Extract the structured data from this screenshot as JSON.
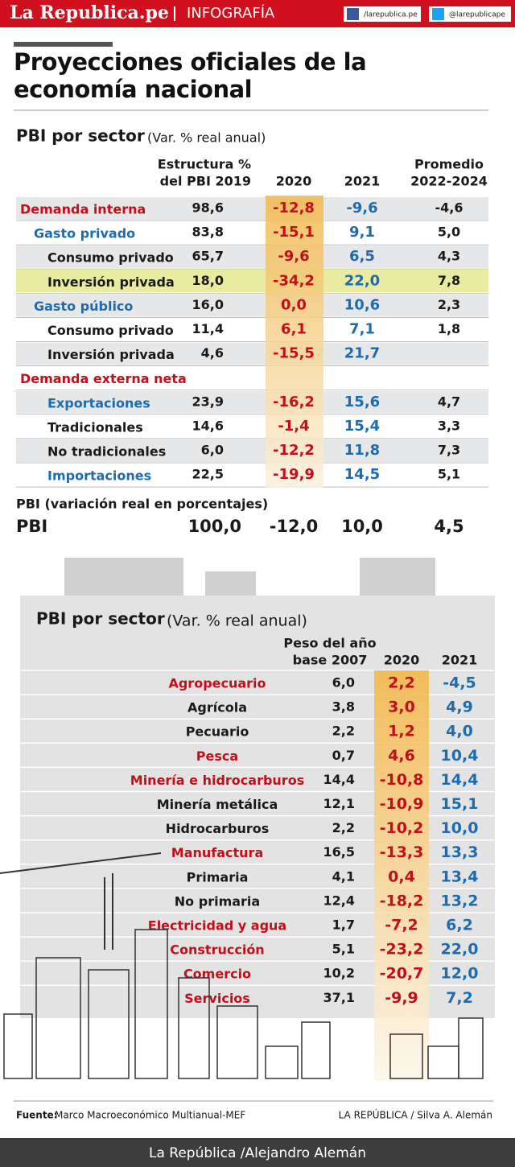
{
  "header": {
    "brand": "La Republica.pe",
    "section": "INFOGRAFÍA",
    "facebook": "/larepublica.pe",
    "twitter": "@larepublicape"
  },
  "title": "Proyecciones oficiales de la economía nacional",
  "table1": {
    "title": "PBI por sector",
    "subtitle": "(Var. % real anual)",
    "columns": [
      [
        "Estructura %",
        "del PBI 2019"
      ],
      [
        "2020"
      ],
      [
        "2021"
      ],
      [
        "Promedio",
        "2022-2024"
      ]
    ],
    "rows": [
      {
        "label": "Demanda interna",
        "color": "red",
        "indent": 0,
        "cells": [
          "98,6",
          "-12,8",
          "-9,6",
          "-4,6"
        ]
      },
      {
        "label": "Gasto privado",
        "color": "blue",
        "indent": 1,
        "cells": [
          "83,8",
          "-15,1",
          "9,1",
          "5,0"
        ]
      },
      {
        "label": "Consumo privado",
        "color": "black",
        "indent": 2,
        "cells": [
          "65,7",
          "-9,6",
          "6,5",
          "4,3"
        ]
      },
      {
        "label": "Inversión privada",
        "color": "black",
        "indent": 2,
        "highlight": true,
        "cells": [
          "18,0",
          "-34,2",
          "22,0",
          "7,8"
        ]
      },
      {
        "label": "Gasto público",
        "color": "blue",
        "indent": 1,
        "cells": [
          "16,0",
          "0,0",
          "10,6",
          "2,3"
        ]
      },
      {
        "label": "Consumo privado",
        "color": "black",
        "indent": 2,
        "cells": [
          "11,4",
          "6,1",
          "7,1",
          "1,8"
        ]
      },
      {
        "label": "Inversión privada",
        "color": "black",
        "indent": 2,
        "cells": [
          "4,6",
          "-15,5",
          "21,7",
          null
        ]
      },
      {
        "label": "Demanda externa neta",
        "color": "red",
        "indent": 0,
        "cells": [
          null,
          null,
          null,
          null
        ]
      },
      {
        "label": "Exportaciones",
        "color": "blue",
        "indent": 2,
        "cells": [
          "23,9",
          "-16,2",
          "15,6",
          "4,7"
        ]
      },
      {
        "label": "Tradicionales",
        "color": "black",
        "indent": 2,
        "cells": [
          "14,6",
          "-1,4",
          "15,4",
          "3,3"
        ]
      },
      {
        "label": "No tradicionales",
        "color": "black",
        "indent": 2,
        "cells": [
          "6,0",
          "-12,2",
          "11,8",
          "7,3"
        ]
      },
      {
        "label": "Importaciones",
        "color": "blue",
        "indent": 2,
        "cells": [
          "22,5",
          "-19,9",
          "14,5",
          "5,1"
        ]
      }
    ],
    "note": "PBI (variación real en porcentajes)",
    "total": {
      "label": "PBI",
      "cells": [
        "100,0",
        "-12,0",
        "10,0",
        "4,5"
      ]
    }
  },
  "table2": {
    "title": "PBI por sector",
    "subtitle": "(Var. % real anual)",
    "columns": [
      [
        "Peso del año",
        "base 2007"
      ],
      [
        "2020"
      ],
      [
        "2021"
      ]
    ],
    "rows": [
      {
        "label": "Agropecuario",
        "color": "red",
        "cells": [
          "6,0",
          "2,2",
          "-4,5"
        ]
      },
      {
        "label": "Agrícola",
        "color": "black",
        "cells": [
          "3,8",
          "3,0",
          "4,9"
        ]
      },
      {
        "label": "Pecuario",
        "color": "black",
        "cells": [
          "2,2",
          "1,2",
          "4,0"
        ]
      },
      {
        "label": "Pesca",
        "color": "red",
        "cells": [
          "0,7",
          "4,6",
          "10,4"
        ]
      },
      {
        "label": "Minería e hidrocarburos",
        "color": "red",
        "cells": [
          "14,4",
          "-10,8",
          "14,4"
        ]
      },
      {
        "label": "Minería metálica",
        "color": "black",
        "cells": [
          "12,1",
          "-10,9",
          "15,1"
        ]
      },
      {
        "label": "Hidrocarburos",
        "color": "black",
        "cells": [
          "2,2",
          "-10,2",
          "10,0"
        ]
      },
      {
        "label": "Manufactura",
        "color": "red",
        "cells": [
          "16,5",
          "-13,3",
          "13,3"
        ]
      },
      {
        "label": "Primaria",
        "color": "black",
        "cells": [
          "4,1",
          "0,4",
          "13,4"
        ]
      },
      {
        "label": "No primaria",
        "color": "black",
        "cells": [
          "12,4",
          "-18,2",
          "13,2"
        ]
      },
      {
        "label": "Electricidad y agua",
        "color": "red",
        "cells": [
          "1,7",
          "-7,2",
          "6,2"
        ]
      },
      {
        "label": "Construcción",
        "color": "red",
        "cells": [
          "5,1",
          "-23,2",
          "22,0"
        ]
      },
      {
        "label": "Comercio",
        "color": "red",
        "cells": [
          "10,2",
          "-20,7",
          "12,0"
        ]
      },
      {
        "label": "Servicios",
        "color": "red",
        "cells": [
          "37,1",
          "-9,9",
          "7,2"
        ]
      }
    ]
  },
  "footer": {
    "source_label": "Fuente:",
    "source": "Marco Macroeconómico Multianual-MEF",
    "credit": "LA REPÚBLICA / Silva A. Alemán",
    "bar": "La República /Alejandro Alemán"
  }
}
